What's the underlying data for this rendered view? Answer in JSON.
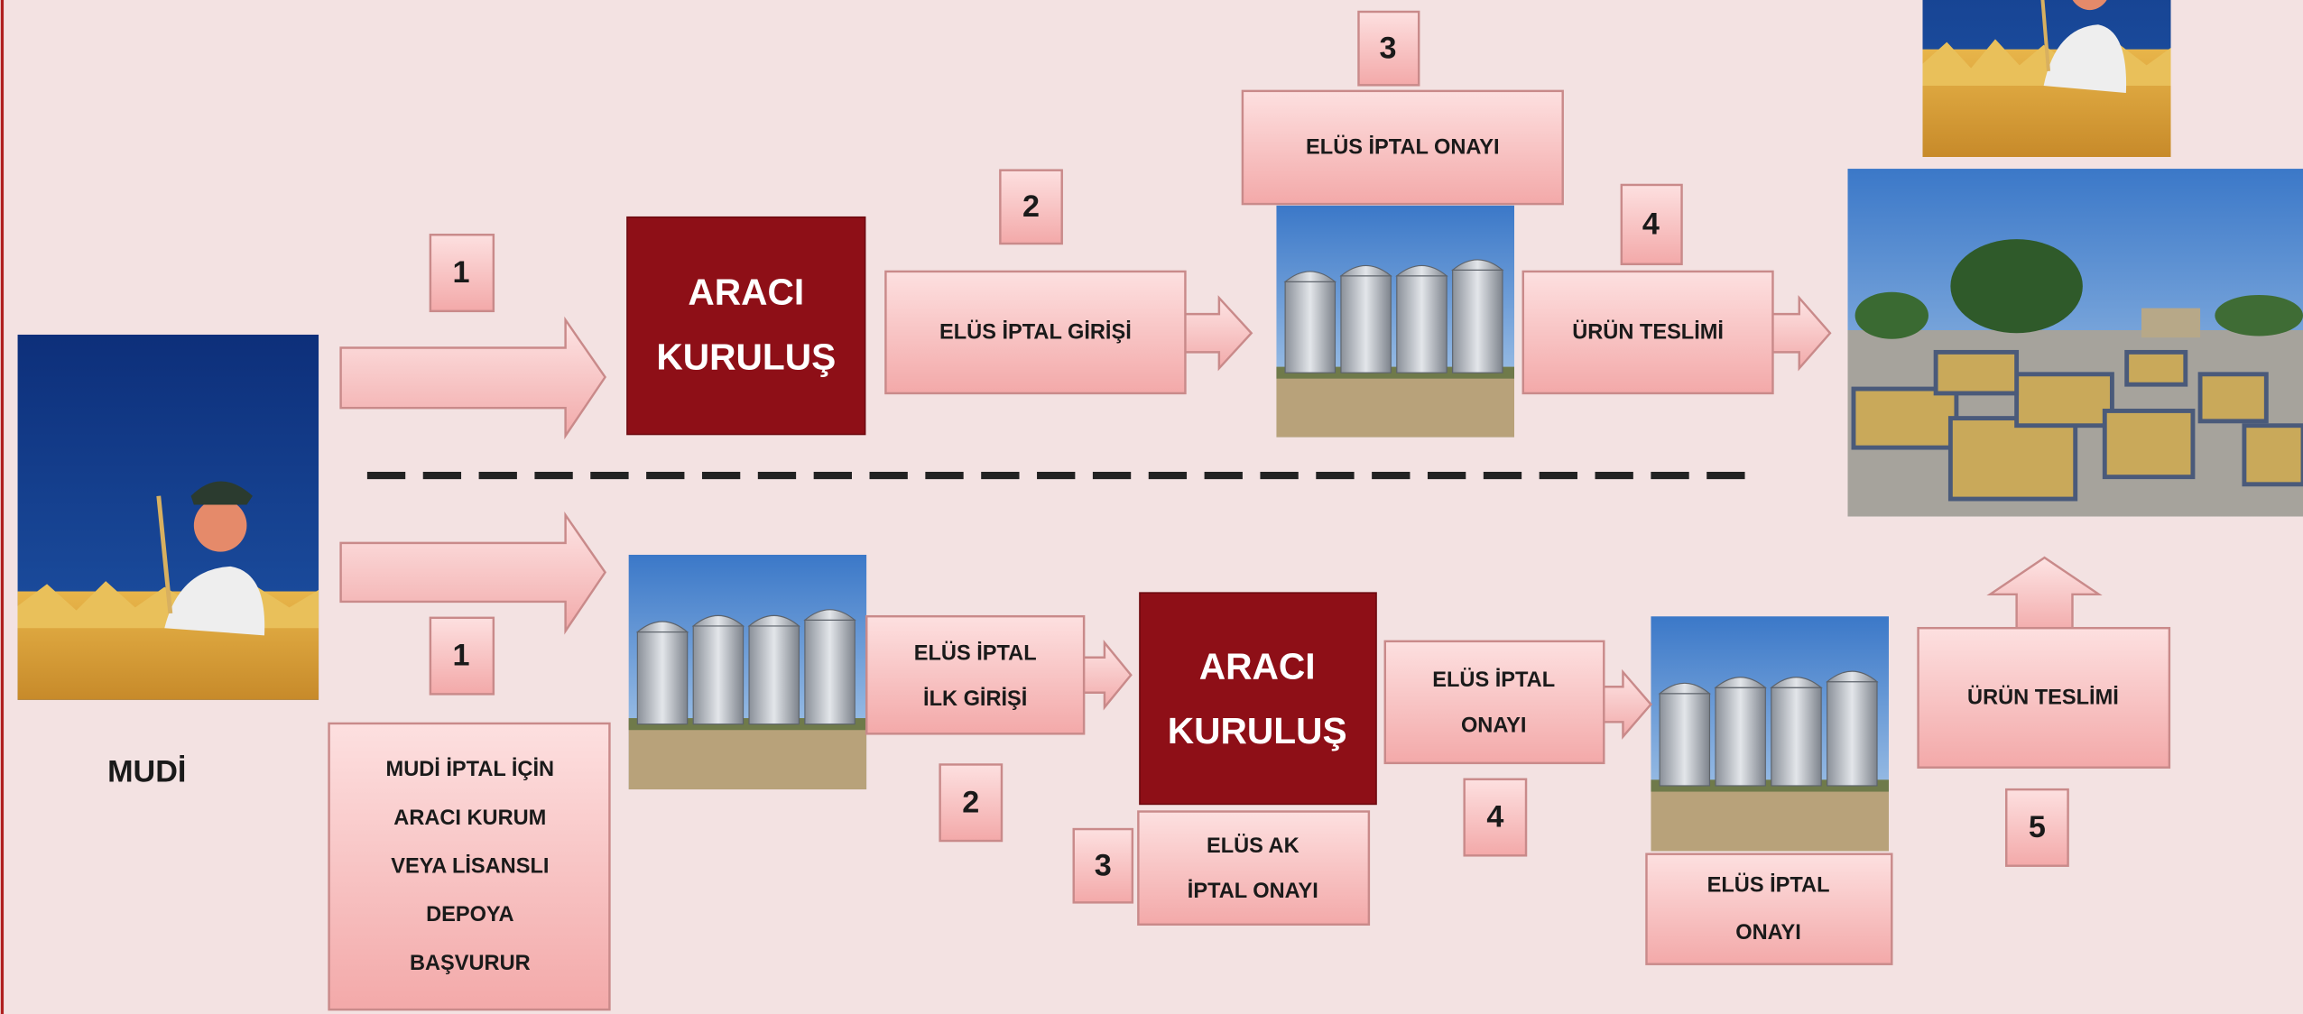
{
  "actor_label": "MUDİ",
  "top_row": {
    "intermediary": [
      "ARACI",
      "KURULUŞ"
    ],
    "steps": [
      {
        "number": "1"
      },
      {
        "number": "2",
        "label": [
          "ELÜS İPTAL GİRİŞİ"
        ]
      },
      {
        "number": "3",
        "label": [
          "ELÜS İPTAL ONAYI"
        ]
      },
      {
        "number": "4",
        "label": [
          "ÜRÜN TESLİMİ"
        ]
      }
    ]
  },
  "bottom_row": {
    "intermediary": [
      "ARACI",
      "KURULUŞ"
    ],
    "steps": [
      {
        "number": "1",
        "label": [
          "MUDİ İPTAL İÇİN",
          "ARACI KURUM",
          "VEYA LİSANSLI",
          "DEPOYA",
          "BAŞVURUR"
        ]
      },
      {
        "number": "2",
        "label": [
          "ELÜS İPTAL",
          "İLK GİRİŞİ"
        ]
      },
      {
        "number": "3",
        "label": [
          "ELÜS AK",
          "İPTAL ONAYI"
        ]
      },
      {
        "number": "4",
        "label": [
          "ELÜS İPTAL",
          "ONAYI"
        ]
      },
      {
        "number": "5",
        "label": [
          "ÜRÜN TESLİMİ"
        ]
      }
    ],
    "storage_label": [
      "ELÜS İPTAL",
      "ONAYI"
    ]
  }
}
